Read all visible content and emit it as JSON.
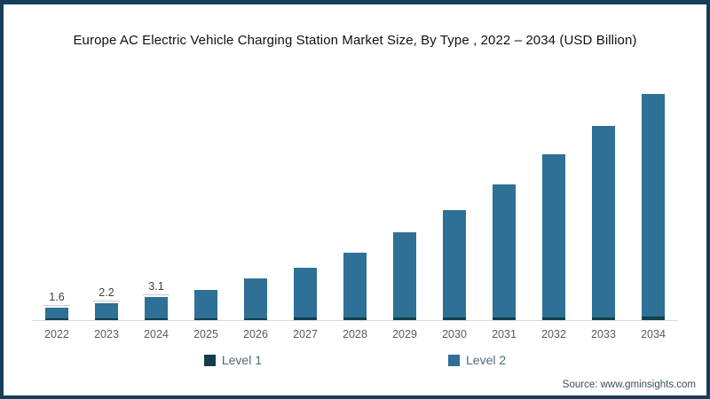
{
  "frame": {
    "border_color": "#163e5a",
    "background": "#ffffff"
  },
  "chart_data": {
    "type": "bar",
    "stacked": true,
    "title": "Europe AC Electric Vehicle Charging Station Market Size, By Type , 2022 – 2034 (USD Billion)",
    "categories": [
      "2022",
      "2023",
      "2024",
      "2025",
      "2026",
      "2027",
      "2028",
      "2029",
      "2030",
      "2031",
      "2032",
      "2033",
      "2034"
    ],
    "series": [
      {
        "name": "Level 1",
        "color": "#123e4c",
        "values": [
          0.2,
          0.2,
          0.2,
          0.25,
          0.25,
          0.3,
          0.3,
          0.3,
          0.35,
          0.35,
          0.4,
          0.4,
          0.45
        ]
      },
      {
        "name": "Level 2",
        "color": "#2e7096",
        "values": [
          1.4,
          2.0,
          2.9,
          3.75,
          5.25,
          6.7,
          8.7,
          11.3,
          14.25,
          17.65,
          21.6,
          25.4,
          29.55
        ]
      }
    ],
    "totals": [
      1.6,
      2.2,
      3.1,
      4.0,
      5.5,
      7.0,
      9.0,
      11.6,
      14.6,
      18.0,
      22.0,
      25.8,
      30.0
    ],
    "data_labels": [
      "1.6",
      "2.2",
      "3.1",
      "",
      "",
      "",
      "",
      "",
      "",
      "",
      "",
      "",
      ""
    ],
    "xlabel": "",
    "ylabel": "",
    "ylim": [
      0,
      30.5
    ],
    "axis_line_color": "#d9d9d9",
    "label_rule_color": "#c9c9c9",
    "legend_position": "bottom",
    "source": "Source: www.gminsights.com"
  }
}
